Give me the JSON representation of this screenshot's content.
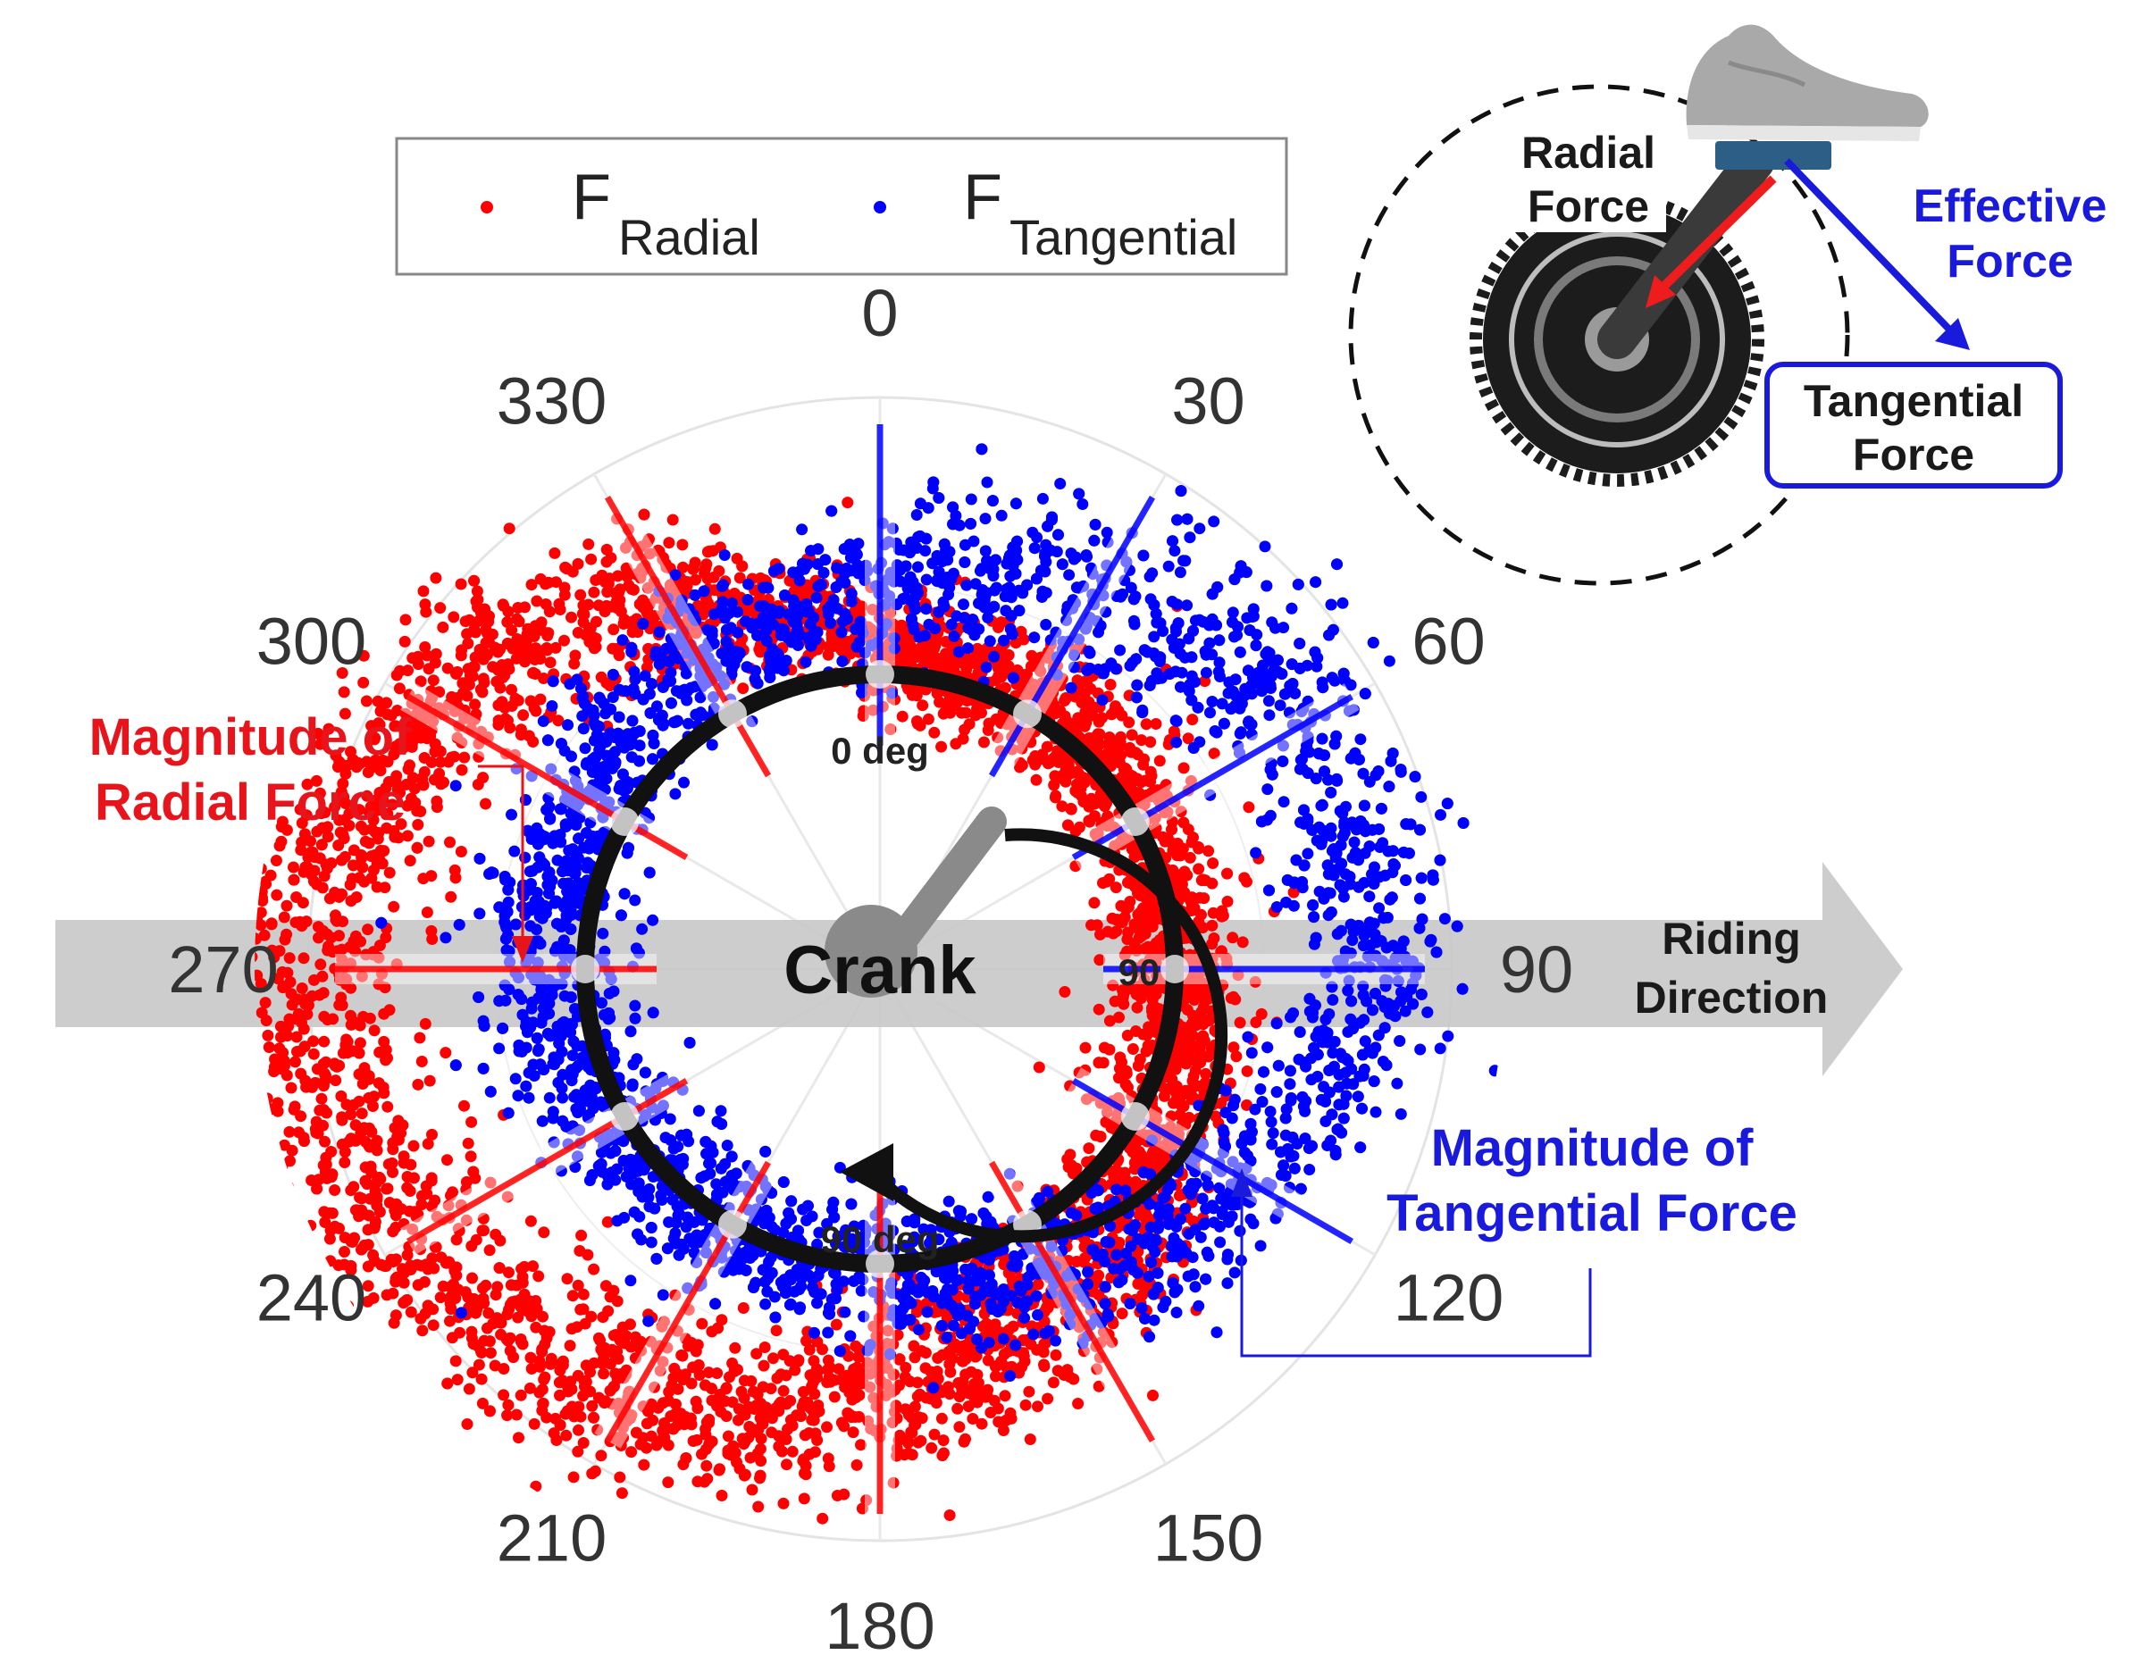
{
  "chart_data": {
    "type": "scatter",
    "subtype": "polar",
    "theta_direction": "clockwise",
    "theta_zero": "top",
    "theta_ticks": [
      0,
      30,
      60,
      90,
      120,
      150,
      180,
      210,
      240,
      270,
      300,
      330
    ],
    "theta_tick_labels": [
      "0",
      "30",
      "60",
      "90",
      "120",
      "150",
      "180",
      "210",
      "240",
      "270",
      "300",
      "330"
    ],
    "grid": true,
    "legend_position": "top",
    "series": [
      {
        "name": "F_Radial",
        "legend_main": "F",
        "legend_sub": "Radial",
        "color": "#ff0000",
        "ring_r_mean": [
          0.55,
          0.54,
          0.52,
          0.51,
          0.55,
          0.64,
          0.74,
          0.86,
          0.96,
          1.0,
          0.9,
          0.74
        ],
        "ring_r_spread": [
          0.05,
          0.05,
          0.05,
          0.06,
          0.06,
          0.07,
          0.08,
          0.08,
          0.08,
          0.08,
          0.08,
          0.07
        ]
      },
      {
        "name": "F_Tangential",
        "legend_main": "F",
        "legend_sub": "Tangential",
        "color": "#0000ff",
        "ring_r_mean": [
          0.66,
          0.76,
          0.86,
          0.86,
          0.72,
          0.6,
          0.52,
          0.52,
          0.55,
          0.57,
          0.6,
          0.62
        ],
        "ring_r_spread": [
          0.07,
          0.09,
          0.08,
          0.07,
          0.07,
          0.07,
          0.06,
          0.06,
          0.06,
          0.06,
          0.06,
          0.06
        ]
      }
    ]
  },
  "annotations": {
    "radial_magnitude": [
      "Magnitude of",
      "Radial Force"
    ],
    "tangential_magnitude": [
      "Magnitude of",
      "Tangential Force"
    ],
    "riding_direction": [
      "Riding",
      "Direction"
    ],
    "crank": "Crank",
    "inner_top": "0 deg",
    "inner_right": "90",
    "inner_bottom": "90 deg"
  },
  "inset": {
    "radial_force": [
      "Radial",
      "Force"
    ],
    "effective_force": [
      "Effective",
      "Force"
    ],
    "tangential_force": [
      "Tangential",
      "Force"
    ]
  },
  "colors": {
    "radial": "#ff0000",
    "tangential": "#0000ff",
    "arrow_gray": "#c8c8c8",
    "annotation_red": "#e8141b",
    "annotation_blue": "#1a1adc"
  }
}
